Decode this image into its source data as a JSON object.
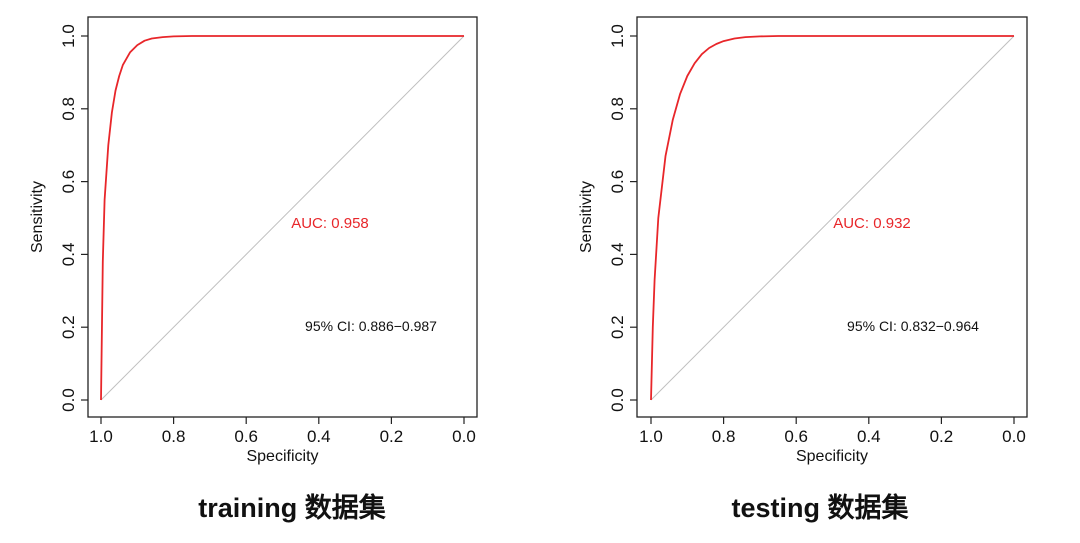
{
  "chart_data": [
    {
      "type": "line",
      "caption": "training 数据集",
      "xlabel": "Specificity",
      "ylabel": "Sensitivity",
      "xlim": [
        1.0,
        0.0
      ],
      "ylim": [
        0.0,
        1.0
      ],
      "x_reversed": true,
      "xticks": [
        "1.0",
        "0.8",
        "0.6",
        "0.4",
        "0.2",
        "0.0"
      ],
      "yticks": [
        "0.0",
        "0.2",
        "0.4",
        "0.6",
        "0.8",
        "1.0"
      ],
      "auc_label": "AUC: 0.958",
      "ci_label": "95% CI: 0.886−0.987",
      "grid": false,
      "series": [
        {
          "color": "#e8262a",
          "x": [
            1.0,
            0.995,
            0.99,
            0.98,
            0.97,
            0.96,
            0.95,
            0.94,
            0.92,
            0.9,
            0.88,
            0.86,
            0.83,
            0.8,
            0.75,
            0.7,
            0.6,
            0.4,
            0.2,
            0.0
          ],
          "y": [
            0.0,
            0.38,
            0.55,
            0.7,
            0.79,
            0.85,
            0.89,
            0.92,
            0.955,
            0.975,
            0.987,
            0.993,
            0.997,
            0.999,
            1.0,
            1.0,
            1.0,
            1.0,
            1.0,
            1.0
          ]
        },
        {
          "color": "#bfbfbf",
          "x": [
            1.0,
            0.0
          ],
          "y": [
            0.0,
            1.0
          ]
        }
      ]
    },
    {
      "type": "line",
      "caption": "testing 数据集",
      "xlabel": "Specificity",
      "ylabel": "Sensitivity",
      "xlim": [
        1.0,
        0.0
      ],
      "ylim": [
        0.0,
        1.0
      ],
      "x_reversed": true,
      "xticks": [
        "1.0",
        "0.8",
        "0.6",
        "0.4",
        "0.2",
        "0.0"
      ],
      "yticks": [
        "0.0",
        "0.2",
        "0.4",
        "0.6",
        "0.8",
        "1.0"
      ],
      "auc_label": "AUC: 0.932",
      "ci_label": "95% CI: 0.832−0.964",
      "grid": false,
      "series": [
        {
          "color": "#e8262a",
          "x": [
            1.0,
            0.995,
            0.99,
            0.98,
            0.96,
            0.94,
            0.92,
            0.9,
            0.88,
            0.86,
            0.84,
            0.82,
            0.8,
            0.77,
            0.74,
            0.7,
            0.65,
            0.6,
            0.4,
            0.2,
            0.0
          ],
          "y": [
            0.0,
            0.2,
            0.33,
            0.5,
            0.67,
            0.77,
            0.84,
            0.89,
            0.925,
            0.95,
            0.967,
            0.978,
            0.986,
            0.993,
            0.997,
            0.999,
            1.0,
            1.0,
            1.0,
            1.0,
            1.0
          ]
        },
        {
          "color": "#bfbfbf",
          "x": [
            1.0,
            0.0
          ],
          "y": [
            0.0,
            1.0
          ]
        }
      ]
    }
  ]
}
